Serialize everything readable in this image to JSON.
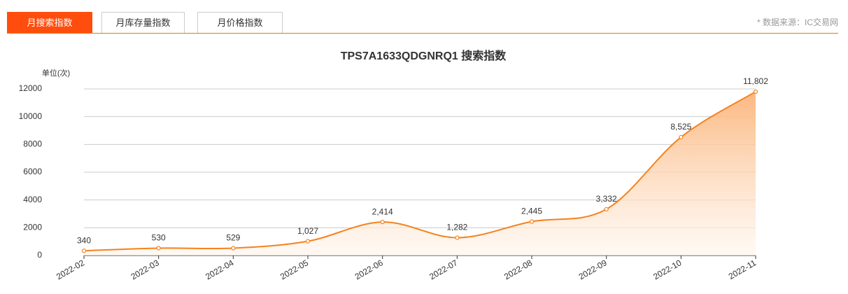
{
  "tabs": [
    "月搜索指数",
    "月库存量指数",
    "月价格指数"
  ],
  "source": "* 数据来源：IC交易网",
  "chart_data": {
    "type": "line",
    "title": "TPS7A1633QDGNRQ1 搜索指数",
    "y_label": "单位(次)",
    "categories": [
      "2022-02",
      "2022-03",
      "2022-04",
      "2022-05",
      "2022-06",
      "2022-07",
      "2022-08",
      "2022-09",
      "2022-10",
      "2022-11"
    ],
    "series": [
      {
        "name": "搜索指数",
        "color": "#f5821f",
        "values": [
          340,
          530,
          529,
          1027,
          2414,
          1282,
          2445,
          3332,
          8525,
          11802
        ],
        "value_labels": [
          "340",
          "530",
          "529",
          "1,027",
          "2,414",
          "1,282",
          "2,445",
          "3,332",
          "8,525",
          "11,802"
        ]
      }
    ],
    "ylim": [
      0,
      12000
    ],
    "yticks": [
      0,
      2000,
      4000,
      6000,
      8000,
      10000,
      12000
    ],
    "grid": true
  }
}
